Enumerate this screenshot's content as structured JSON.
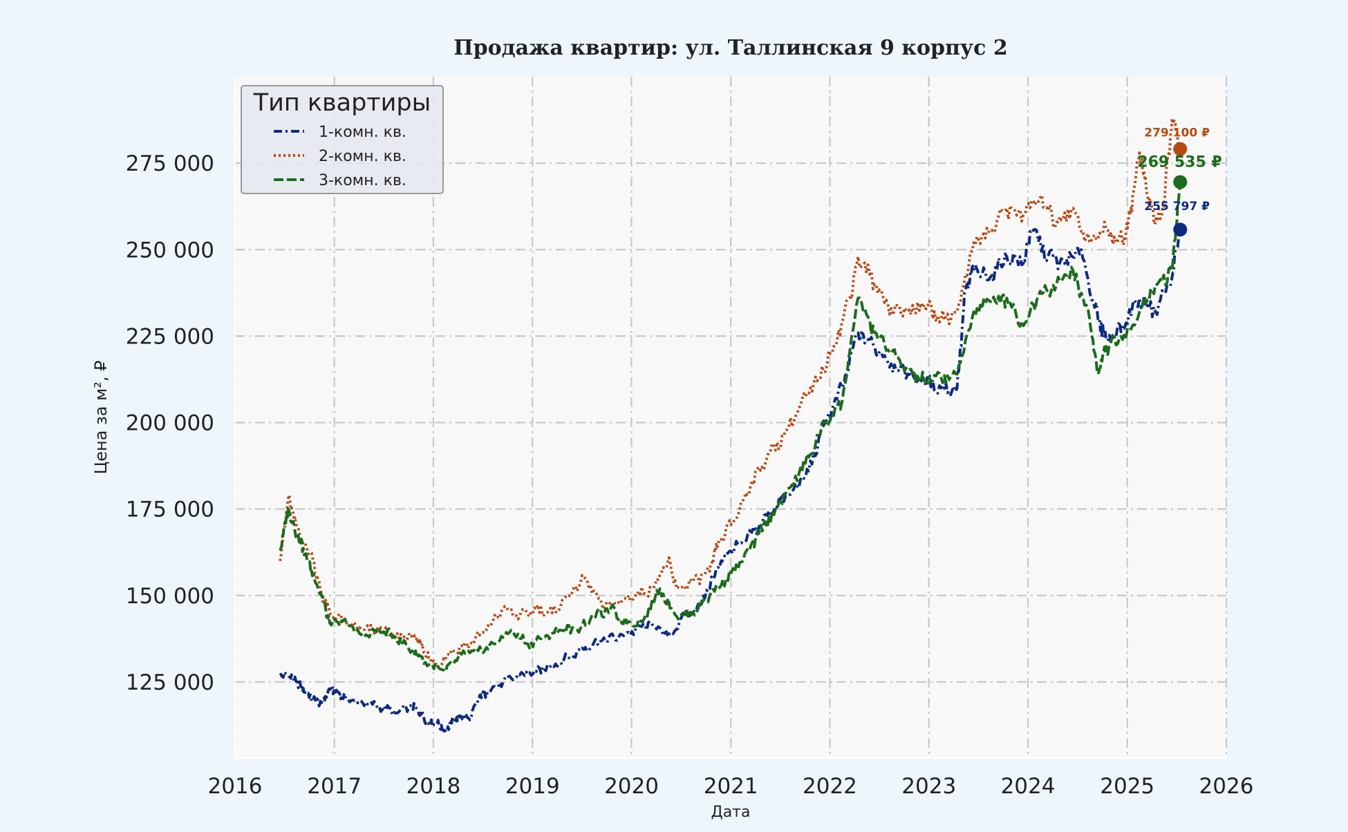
{
  "chart_data": {
    "type": "line",
    "title": "Продажа квартир: ул. Таллинская 9 корпус 2",
    "xlabel": "Дата",
    "ylabel": "Цена за м², ₽",
    "xlim": [
      "2016-01-01",
      "2026-01-01"
    ],
    "ylim": [
      103000,
      300000
    ],
    "x_ticks": [
      "2016",
      "2017",
      "2018",
      "2019",
      "2020",
      "2021",
      "2022",
      "2023",
      "2024",
      "2025",
      "2026"
    ],
    "y_ticks": [
      125000,
      150000,
      175000,
      200000,
      225000,
      250000,
      275000
    ],
    "y_tick_labels": [
      "125 000",
      "150 000",
      "175 000",
      "200 000",
      "225 000",
      "250 000",
      "275 000"
    ],
    "grid": true,
    "legend": {
      "title": "Тип квартиры",
      "position": "top-left"
    },
    "series": [
      {
        "name": "1-комн. кв.",
        "color": "#0d2a80",
        "dash": "dash-dot",
        "x": [
          "2016-06",
          "2016-07",
          "2016-08",
          "2016-09",
          "2016-10",
          "2016-11",
          "2016-12",
          "2017-01",
          "2017-02",
          "2017-04",
          "2017-06",
          "2017-08",
          "2017-10",
          "2017-11",
          "2017-12",
          "2018-01",
          "2018-02",
          "2018-03",
          "2018-04",
          "2018-05",
          "2018-06",
          "2018-07",
          "2018-09",
          "2018-11",
          "2019-01",
          "2019-03",
          "2019-05",
          "2019-07",
          "2019-09",
          "2019-11",
          "2020-01",
          "2020-03",
          "2020-05",
          "2020-07",
          "2020-09",
          "2020-11",
          "2020-12",
          "2021-02",
          "2021-04",
          "2021-06",
          "2021-08",
          "2021-10",
          "2021-12",
          "2022-02",
          "2022-04",
          "2022-06",
          "2022-08",
          "2022-10",
          "2022-12",
          "2023-02",
          "2023-04",
          "2023-05",
          "2023-06",
          "2023-08",
          "2023-10",
          "2023-12",
          "2024-01",
          "2024-03",
          "2024-05",
          "2024-07",
          "2024-09",
          "2024-10",
          "2024-12",
          "2025-02",
          "2025-04",
          "2025-06",
          "2025-07"
        ],
        "values": [
          127000,
          127000,
          125000,
          122000,
          120000,
          119000,
          123000,
          122000,
          120000,
          119000,
          118000,
          116000,
          118000,
          116000,
          113000,
          113000,
          111000,
          114000,
          115000,
          114000,
          120000,
          122000,
          125000,
          127000,
          128000,
          130000,
          132000,
          135000,
          137000,
          138000,
          140000,
          142000,
          138000,
          144000,
          148000,
          158000,
          162000,
          165000,
          170000,
          176000,
          180000,
          186000,
          200000,
          210000,
          226000,
          222000,
          217000,
          214000,
          212000,
          210000,
          210000,
          238000,
          244000,
          242000,
          248000,
          246000,
          256000,
          248000,
          246000,
          250000,
          230000,
          224000,
          228000,
          236000,
          232000,
          242000,
          255797
        ]
      },
      {
        "name": "2-комн. кв.",
        "color": "#b64a14",
        "dash": "dotted",
        "x": [
          "2016-06",
          "2016-07",
          "2016-08",
          "2016-10",
          "2016-11",
          "2016-12",
          "2017-02",
          "2017-04",
          "2017-06",
          "2017-08",
          "2017-10",
          "2017-11",
          "2017-12",
          "2018-01",
          "2018-03",
          "2018-05",
          "2018-07",
          "2018-09",
          "2018-11",
          "2019-01",
          "2019-03",
          "2019-05",
          "2019-07",
          "2019-09",
          "2019-11",
          "2020-01",
          "2020-03",
          "2020-05",
          "2020-06",
          "2020-08",
          "2020-10",
          "2020-11",
          "2021-01",
          "2021-03",
          "2021-05",
          "2021-07",
          "2021-09",
          "2021-11",
          "2022-01",
          "2022-03",
          "2022-04",
          "2022-06",
          "2022-08",
          "2022-10",
          "2022-12",
          "2023-02",
          "2023-04",
          "2023-06",
          "2023-08",
          "2023-10",
          "2023-12",
          "2024-02",
          "2024-04",
          "2024-06",
          "2024-08",
          "2024-10",
          "2024-12",
          "2025-01",
          "2025-02",
          "2025-03",
          "2025-04",
          "2025-05",
          "2025-06",
          "2025-07"
        ],
        "values": [
          160000,
          178000,
          170000,
          160000,
          150000,
          145000,
          142000,
          140000,
          140000,
          138000,
          138000,
          136000,
          132000,
          130000,
          134000,
          136000,
          140000,
          146000,
          144000,
          146000,
          145000,
          150000,
          155000,
          147000,
          148000,
          150000,
          152000,
          160000,
          152000,
          154000,
          157000,
          165000,
          172000,
          182000,
          190000,
          196000,
          205000,
          212000,
          222000,
          236000,
          248000,
          240000,
          233000,
          232000,
          234000,
          230000,
          232000,
          252000,
          255000,
          262000,
          260000,
          265000,
          258000,
          262000,
          252000,
          256000,
          252000,
          262000,
          278000,
          266000,
          258000,
          262000,
          288000,
          279100
        ]
      },
      {
        "name": "3-комн. кв.",
        "color": "#1c6b1c",
        "dash": "dashed",
        "x": [
          "2016-06",
          "2016-07",
          "2016-08",
          "2016-09",
          "2016-10",
          "2016-11",
          "2016-12",
          "2017-02",
          "2017-04",
          "2017-06",
          "2017-08",
          "2017-10",
          "2017-12",
          "2018-02",
          "2018-04",
          "2018-06",
          "2018-08",
          "2018-10",
          "2018-12",
          "2019-02",
          "2019-04",
          "2019-06",
          "2019-08",
          "2019-10",
          "2019-12",
          "2020-02",
          "2020-04",
          "2020-06",
          "2020-08",
          "2020-10",
          "2020-12",
          "2021-02",
          "2021-04",
          "2021-06",
          "2021-08",
          "2021-10",
          "2021-12",
          "2022-02",
          "2022-04",
          "2022-06",
          "2022-08",
          "2022-10",
          "2022-12",
          "2023-02",
          "2023-04",
          "2023-06",
          "2023-08",
          "2023-10",
          "2023-12",
          "2024-02",
          "2024-04",
          "2024-06",
          "2024-08",
          "2024-09",
          "2024-10",
          "2024-12",
          "2025-02",
          "2025-04",
          "2025-06",
          "2025-07"
        ],
        "values": [
          163000,
          175000,
          168000,
          162000,
          156000,
          150000,
          142000,
          142000,
          138000,
          140000,
          138000,
          134000,
          130000,
          128000,
          133000,
          134000,
          136000,
          140000,
          136000,
          138000,
          140000,
          140000,
          144000,
          146000,
          142000,
          143000,
          152000,
          144000,
          145000,
          150000,
          155000,
          160000,
          168000,
          175000,
          182000,
          190000,
          200000,
          206000,
          236000,
          226000,
          220000,
          215000,
          212000,
          213000,
          214000,
          232000,
          235000,
          236000,
          228000,
          238000,
          240000,
          244000,
          230000,
          214000,
          222000,
          224000,
          232000,
          240000,
          244000,
          269535
        ]
      }
    ],
    "annotations": [
      {
        "text": "279 100 ₽",
        "x": "2025-07",
        "y": 279100,
        "series": "2-комн. кв."
      },
      {
        "text": "269 535 ₽",
        "x": "2025-07",
        "y": 269535,
        "series": "3-комн. кв."
      },
      {
        "text": "255 797 ₽",
        "x": "2025-07",
        "y": 255797,
        "series": "1-комн. кв."
      }
    ]
  }
}
